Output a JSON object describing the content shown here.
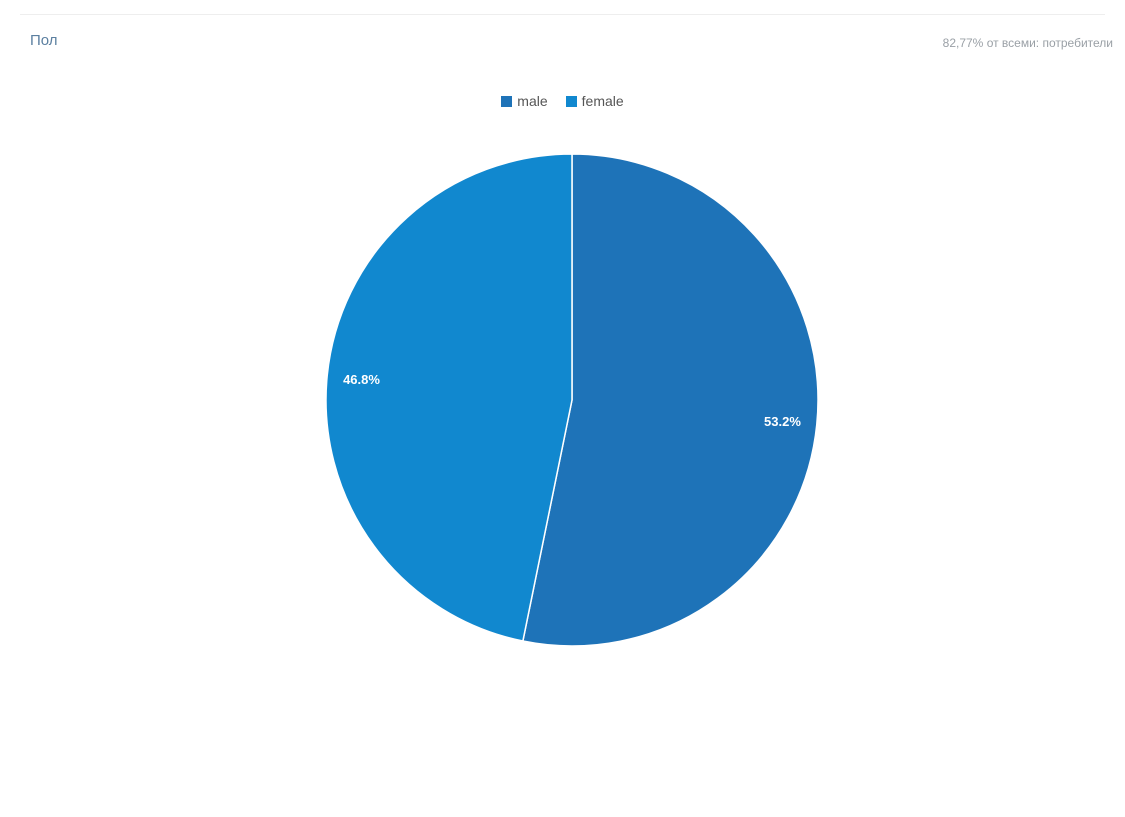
{
  "header": {
    "title": "Пол",
    "subtitle": "82,77% от всеми: потребители"
  },
  "colors": {
    "male": "#1e73b8",
    "female": "#1188cf",
    "separator": "#ffffff"
  },
  "chart_data": {
    "type": "pie",
    "title": "Пол",
    "legend_position": "top",
    "slices": [
      {
        "name": "male",
        "value": 53.2,
        "label": "53.2%"
      },
      {
        "name": "female",
        "value": 46.8,
        "label": "46.8%"
      }
    ]
  }
}
